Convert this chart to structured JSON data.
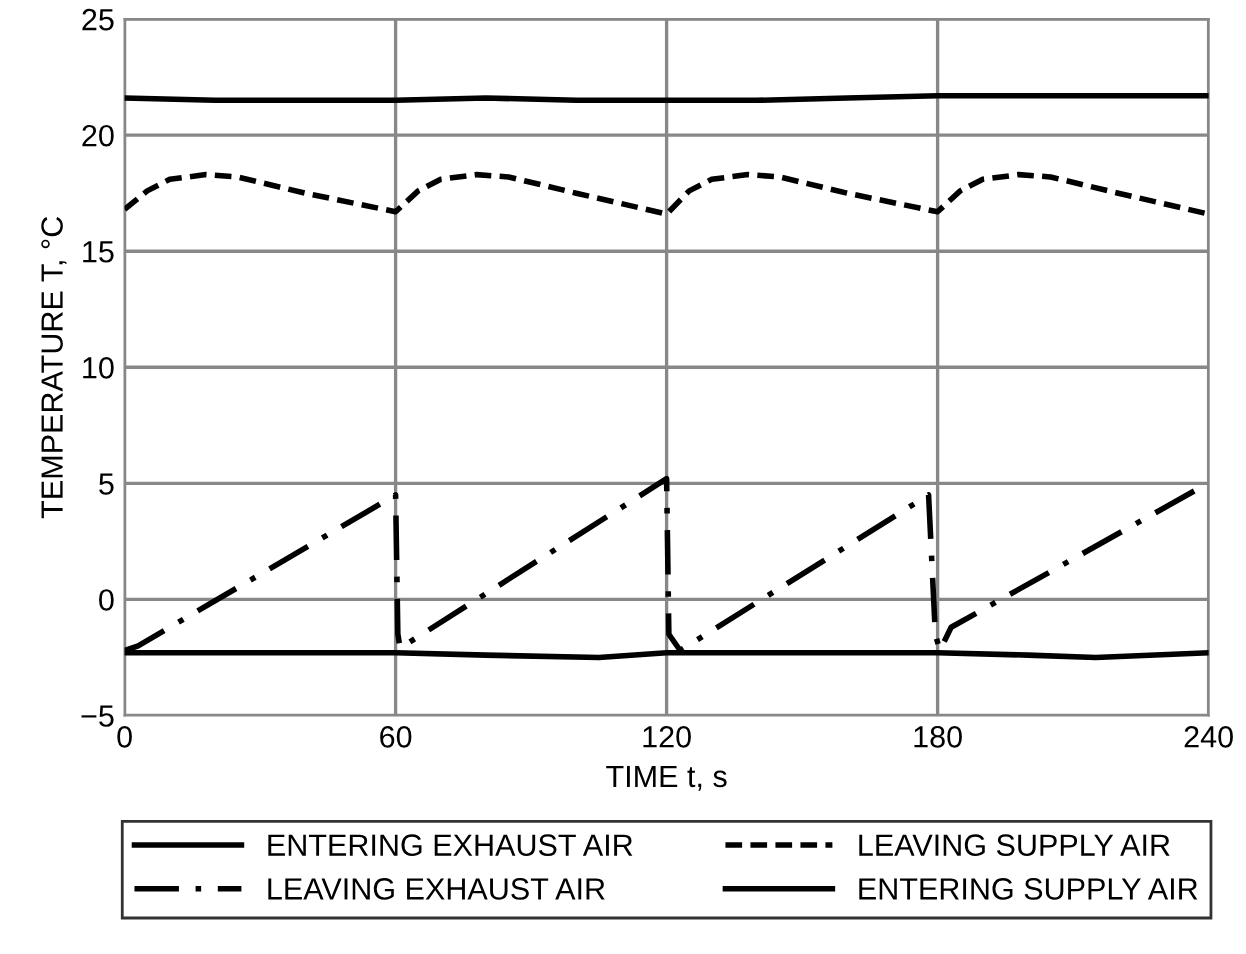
{
  "chart_data": {
    "type": "line",
    "xlabel": "TIME t, s",
    "ylabel": "TEMPERATURE T, °C",
    "xlim": [
      0,
      240
    ],
    "xticks": [
      0,
      60,
      120,
      180,
      240
    ],
    "ylim": [
      -5,
      25
    ],
    "yticks": [
      -5,
      0,
      5,
      10,
      15,
      20,
      25
    ],
    "grid": true,
    "legend": "bottom",
    "marker": "none",
    "series": [
      {
        "name": "ENTERING EXHAUST AIR",
        "color": "#000000",
        "line_style": "solid",
        "x": [
          0,
          20,
          40,
          60,
          80,
          100,
          120,
          140,
          160,
          180,
          200,
          220,
          240
        ],
        "values": [
          21.6,
          21.5,
          21.5,
          21.5,
          21.6,
          21.5,
          21.5,
          21.5,
          21.6,
          21.7,
          21.7,
          21.7,
          21.7
        ]
      },
      {
        "name": "LEAVING SUPPLY AIR",
        "color": "#000000",
        "line_style": "dashed",
        "x": [
          0,
          5,
          10,
          18,
          25,
          40,
          60,
          65,
          70,
          78,
          85,
          100,
          120,
          125,
          130,
          138,
          145,
          160,
          180,
          185,
          190,
          198,
          205,
          220,
          240
        ],
        "values": [
          16.8,
          17.6,
          18.1,
          18.3,
          18.2,
          17.5,
          16.7,
          17.6,
          18.1,
          18.3,
          18.2,
          17.5,
          16.6,
          17.6,
          18.1,
          18.3,
          18.2,
          17.5,
          16.7,
          17.6,
          18.1,
          18.3,
          18.2,
          17.5,
          16.6
        ]
      },
      {
        "name": "LEAVING EXHAUST AIR",
        "color": "#000000",
        "line_style": "dashdot",
        "x": [
          0,
          3,
          60,
          60.5,
          61,
          120,
          120.5,
          123,
          178,
          179.5,
          180.5,
          183,
          238
        ],
        "values": [
          -2.2,
          -2.0,
          4.5,
          -1.5,
          -2.1,
          5.2,
          -1.5,
          -2.2,
          4.5,
          -1.5,
          -2.2,
          -1.2,
          4.8
        ]
      },
      {
        "name": "ENTERING SUPPLY AIR",
        "color": "#000000",
        "line_style": "solid",
        "x": [
          0,
          30,
          60,
          80,
          105,
          120,
          150,
          180,
          200,
          215,
          240
        ],
        "values": [
          -2.3,
          -2.3,
          -2.3,
          -2.4,
          -2.5,
          -2.3,
          -2.3,
          -2.3,
          -2.4,
          -2.5,
          -2.3
        ]
      }
    ]
  }
}
